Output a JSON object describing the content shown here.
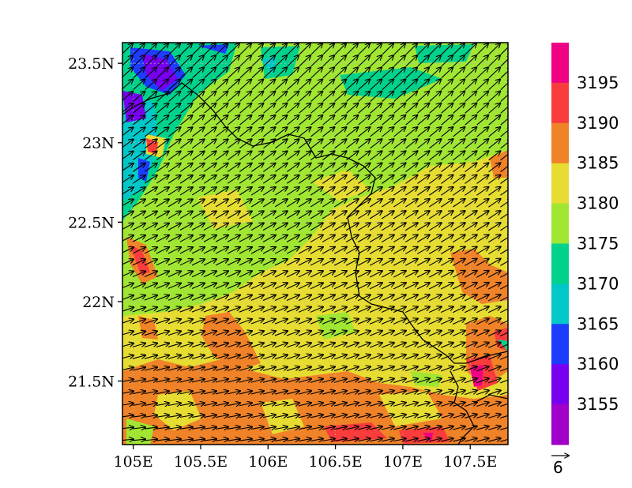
{
  "map": {
    "lat_ticks": [
      {
        "value": 23.5,
        "label": "23.5N"
      },
      {
        "value": 23.0,
        "label": "23N"
      },
      {
        "value": 22.5,
        "label": "22.5N"
      },
      {
        "value": 22.0,
        "label": "22N"
      },
      {
        "value": 21.5,
        "label": "21.5N"
      }
    ],
    "lon_ticks": [
      {
        "value": 105.0,
        "label": "105E"
      },
      {
        "value": 105.5,
        "label": "105.5E"
      },
      {
        "value": 106.0,
        "label": "106E"
      },
      {
        "value": 106.5,
        "label": "106.5E"
      },
      {
        "value": 107.0,
        "label": "107E"
      },
      {
        "value": 107.5,
        "label": "107.5E"
      }
    ],
    "lon_range": [
      104.92,
      107.78
    ],
    "lat_range": [
      21.1,
      23.63
    ],
    "field_colors_note": "filled contours with wind vectors and country border",
    "reference_vector": {
      "label": "6"
    }
  },
  "colorbar": {
    "levels": [
      "3155",
      "3160",
      "3165",
      "3170",
      "3175",
      "3180",
      "3185",
      "3190",
      "3195"
    ],
    "colors": [
      "#a000c8",
      "#7800f0",
      "#1e3cff",
      "#00c8c8",
      "#00d28c",
      "#a0e632",
      "#e6dc32",
      "#f08228",
      "#fa3c3c",
      "#f00082"
    ]
  }
}
